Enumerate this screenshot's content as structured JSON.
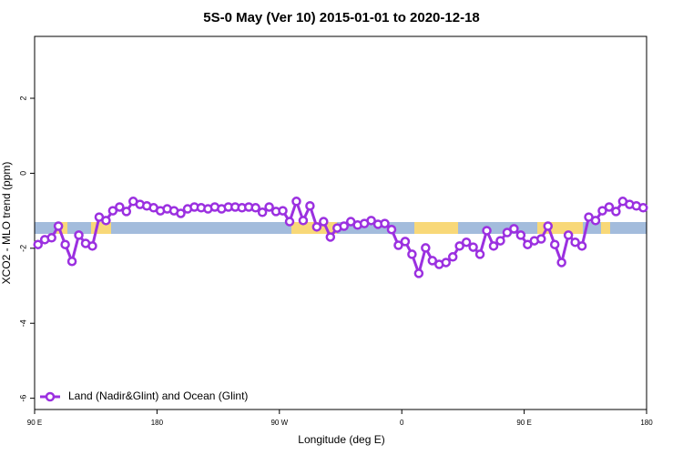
{
  "chart_data": {
    "type": "line",
    "title": "5S-0 May (Ver 10)   2015-01-01 to 2020-12-18",
    "x_label": "Longitude (deg E)",
    "y_label": "XCO2 - MLO trend (ppm)",
    "x": [
      92.5,
      97.5,
      102.5,
      107.5,
      112.5,
      117.5,
      122.5,
      127.5,
      132.5,
      137.5,
      142.5,
      147.5,
      152.5,
      157.5,
      162.5,
      167.5,
      172.5,
      177.5,
      182.5,
      187.5,
      192.5,
      197.5,
      202.5,
      207.5,
      212.5,
      217.5,
      222.5,
      227.5,
      232.5,
      237.5,
      242.5,
      247.5,
      252.5,
      257.5,
      262.5,
      267.5,
      272.5,
      277.5,
      282.5,
      287.5,
      292.5,
      297.5,
      302.5,
      307.5,
      312.5,
      317.5,
      322.5,
      327.5,
      332.5,
      337.5,
      342.5,
      347.5,
      352.5,
      357.5,
      362.5,
      367.5,
      372.5,
      377.5,
      382.5,
      387.5,
      392.5,
      397.5,
      402.5,
      407.5,
      412.5,
      417.5,
      422.5,
      427.5,
      432.5,
      437.5,
      442.5,
      447.5,
      452.5,
      457.5,
      462.5,
      467.5,
      472.5,
      477.5,
      482.5,
      487.5,
      492.5,
      497.5,
      502.5,
      507.5,
      512.5,
      517.5,
      522.5,
      527.5,
      532.5,
      537.5
    ],
    "series": [
      {
        "name": "Land (Nadir&Glint) and Ocean (Glint)",
        "color": "#9b30e0",
        "values": [
          -1.9,
          -1.77,
          -1.72,
          -1.41,
          -1.9,
          -2.35,
          -1.65,
          -1.87,
          -1.94,
          -1.17,
          -1.26,
          -1.0,
          -0.9,
          -1.02,
          -0.75,
          -0.83,
          -0.87,
          -0.92,
          -1.0,
          -0.95,
          -1.0,
          -1.07,
          -0.95,
          -0.9,
          -0.92,
          -0.95,
          -0.9,
          -0.95,
          -0.9,
          -0.9,
          -0.92,
          -0.9,
          -0.92,
          -1.04,
          -0.9,
          -1.02,
          -1.0,
          -1.29,
          -0.75,
          -1.26,
          -0.87,
          -1.43,
          -1.29,
          -1.7,
          -1.46,
          -1.41,
          -1.29,
          -1.38,
          -1.34,
          -1.26,
          -1.36,
          -1.34,
          -1.5,
          -1.92,
          -1.82,
          -2.16,
          -2.67,
          -1.99,
          -2.33,
          -2.43,
          -2.38,
          -2.23,
          -1.94,
          -1.84,
          -1.97,
          -2.16,
          -1.53,
          -1.94,
          -1.8,
          -1.58,
          -1.48,
          -1.65,
          -1.9,
          -1.8,
          -1.75,
          -1.41,
          -1.9,
          -2.38,
          -1.65,
          -1.84,
          -1.94,
          -1.17,
          -1.26,
          -1.0,
          -0.9,
          -1.02,
          -0.75,
          -0.83,
          -0.87,
          -0.92
        ]
      }
    ],
    "xlim": [
      90,
      540
    ],
    "xticks": [
      {
        "value": 90,
        "label": "90 E"
      },
      180,
      {
        "value": 270,
        "label": "90 W"
      },
      {
        "value": 360,
        "label": "0"
      },
      {
        "value": 450,
        "label": "90 E"
      },
      {
        "value": 540,
        "label": "180"
      }
    ],
    "ylim": [
      -6.3,
      3.65
    ],
    "yticks": [
      -6,
      -4,
      -2,
      0,
      2
    ],
    "legend": "bottom-left"
  }
}
